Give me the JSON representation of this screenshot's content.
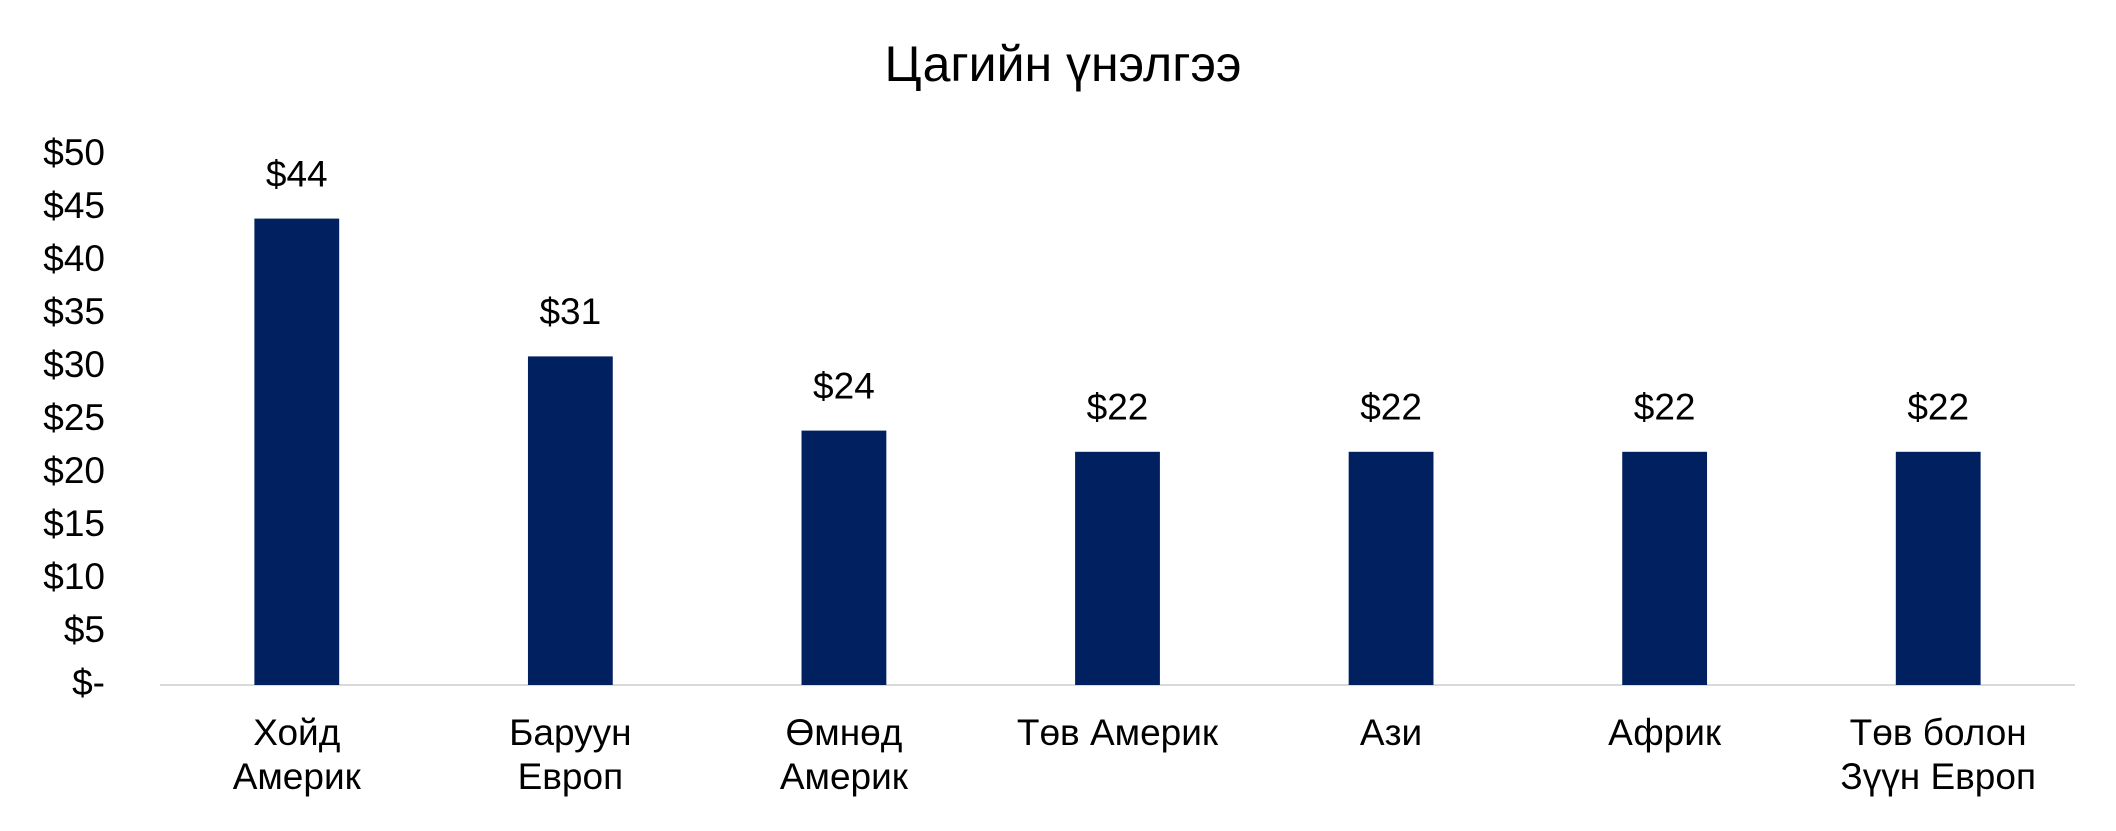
{
  "chart_data": {
    "type": "bar",
    "title": "Цагийн үнэлгээ",
    "categories": [
      "Хойд Америк",
      "Баруун Европ",
      "Өмнөд Америк",
      "Төв Америк",
      "Ази",
      "Африк",
      "Төв болон Зүүн Европ"
    ],
    "values": [
      44,
      31,
      24,
      22,
      22,
      22,
      22
    ],
    "value_labels": [
      "$44",
      "$31",
      "$24",
      "$22",
      "$22",
      "$22",
      "$22"
    ],
    "color": "#002060",
    "ylim": [
      0,
      50
    ],
    "yticks": [
      {
        "value": 0,
        "label": "$-"
      },
      {
        "value": 5,
        "label": "$5"
      },
      {
        "value": 10,
        "label": "$10"
      },
      {
        "value": 15,
        "label": "$15"
      },
      {
        "value": 20,
        "label": "$20"
      },
      {
        "value": 25,
        "label": "$25"
      },
      {
        "value": 30,
        "label": "$30"
      },
      {
        "value": 35,
        "label": "$35"
      },
      {
        "value": 40,
        "label": "$40"
      },
      {
        "value": 45,
        "label": "$45"
      },
      {
        "value": 50,
        "label": "$50"
      }
    ],
    "grid": false
  }
}
